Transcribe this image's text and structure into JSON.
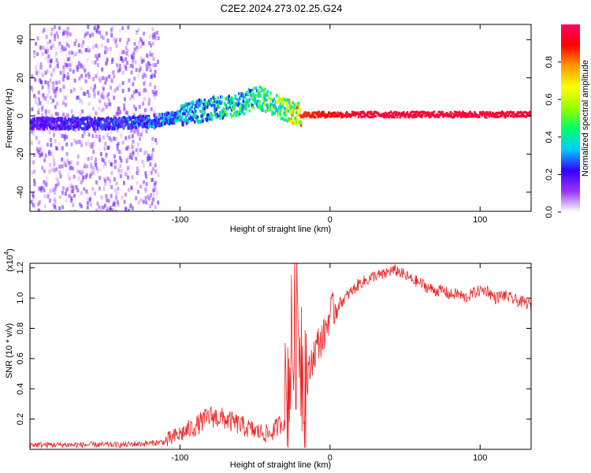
{
  "title": "C2E2.2024.273.02.25.G24",
  "chart_data": [
    {
      "type": "heatmap",
      "xlabel": "Height of straight line (km)",
      "ylabel": "Frequency (Hz)",
      "xlim": [
        -200,
        134
      ],
      "ylim": [
        -50,
        48
      ],
      "xticks": [
        -100,
        0,
        100
      ],
      "yticks": [
        -40,
        -20,
        0,
        20,
        40
      ],
      "xtick_labels": [
        "-100",
        "0",
        "100"
      ],
      "ytick_labels": [
        "-40",
        "-20",
        "0",
        "20",
        "40"
      ],
      "colorbar": {
        "label": "Normalized spectral amplitude",
        "range": [
          0,
          1
        ],
        "ticks": [
          0.0,
          0.2,
          0.4,
          0.6,
          0.8
        ],
        "tick_labels": [
          "0.0",
          "0.2",
          "0.4",
          "0.6",
          "0.8"
        ],
        "colors": [
          "#ffffff",
          "#9933ff",
          "#3300ff",
          "#00ccff",
          "#00ff66",
          "#99ff00",
          "#ffff00",
          "#ff9900",
          "#ff0000",
          "#ff0066"
        ]
      },
      "features": [
        {
          "region": "noise",
          "x_range": [
            -200,
            -115
          ],
          "freq_range": [
            -50,
            48
          ],
          "amplitude": 0.15
        },
        {
          "region": "signal_track",
          "x": [
            -200,
            -150,
            -120,
            -100,
            -80,
            -60,
            -50,
            -40,
            -32,
            -25,
            -20,
            0,
            20,
            134
          ],
          "freq": [
            -4,
            -4,
            -3,
            0,
            4,
            6,
            10,
            7,
            4,
            2,
            0.5,
            0.5,
            0.5,
            0.5
          ],
          "amplitude": [
            0.2,
            0.25,
            0.3,
            0.35,
            0.4,
            0.45,
            0.45,
            0.55,
            0.6,
            0.7,
            0.85,
            0.9,
            0.95,
            0.95
          ]
        }
      ]
    },
    {
      "type": "line",
      "xlabel": "Height of straight line (km)",
      "ylabel": "SNR (10 * v/v)",
      "ylabel_multiplier": "(x10",
      "ylabel_exponent": "4",
      "xlim": [
        -200,
        134
      ],
      "ylim": [
        0,
        1.23
      ],
      "xticks": [
        -100,
        0,
        100
      ],
      "yticks": [
        0.2,
        0.4,
        0.6,
        0.8,
        1.0,
        1.2
      ],
      "xtick_labels": [
        "-100",
        "0",
        "100"
      ],
      "ytick_labels": [
        "0.2",
        "0.4",
        "0.6",
        "0.8",
        "1.0",
        "1.2"
      ],
      "line_color": "#ee2222",
      "series": [
        {
          "name": "SNR",
          "x": [
            -200,
            -180,
            -160,
            -140,
            -120,
            -110,
            -100,
            -90,
            -80,
            -70,
            -60,
            -50,
            -40,
            -35,
            -30,
            -27,
            -24,
            -21,
            -18,
            -15,
            -12,
            -8,
            -4,
            0,
            5,
            10,
            15,
            20,
            25,
            30,
            35,
            40,
            45,
            50,
            55,
            60,
            65,
            70,
            75,
            80,
            85,
            90,
            95,
            100,
            105,
            110,
            115,
            120,
            125,
            130,
            134
          ],
          "y": [
            0.03,
            0.03,
            0.03,
            0.03,
            0.04,
            0.05,
            0.1,
            0.15,
            0.22,
            0.2,
            0.16,
            0.12,
            0.1,
            0.15,
            0.2,
            0.55,
            0.75,
            0.85,
            0.55,
            0.45,
            0.6,
            0.7,
            0.75,
            0.9,
            0.95,
            1.0,
            1.05,
            1.1,
            1.12,
            1.15,
            1.15,
            1.18,
            1.18,
            1.15,
            1.12,
            1.1,
            1.07,
            1.05,
            1.05,
            1.02,
            1.03,
            1.0,
            1.03,
            1.05,
            1.05,
            1.0,
            1.02,
            1.0,
            0.98,
            0.97,
            0.95
          ]
        }
      ]
    }
  ]
}
